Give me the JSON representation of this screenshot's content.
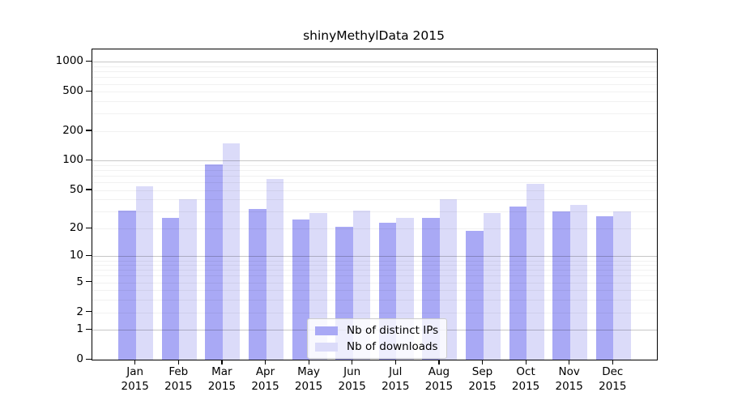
{
  "chart_data": {
    "type": "bar",
    "title": "shinyMethylData 2015",
    "categories": [
      "Jan",
      "Feb",
      "Mar",
      "Apr",
      "May",
      "Jun",
      "Jul",
      "Aug",
      "Sep",
      "Oct",
      "Nov",
      "Dec"
    ],
    "year_label": "2015",
    "series": [
      {
        "name": "Nb of distinct IPs",
        "color": "#a9a9f5",
        "values": [
          31,
          26,
          92,
          32,
          25,
          21,
          23,
          26,
          19,
          34,
          30,
          27
        ]
      },
      {
        "name": "Nb of downloads",
        "color": "#dbdbf9",
        "values": [
          55,
          40,
          150,
          65,
          29,
          31,
          26,
          40,
          29,
          58,
          35,
          30
        ]
      }
    ],
    "xlabel": "",
    "ylabel": "",
    "yscale": "log1p",
    "ylim": [
      0,
      1320
    ],
    "ytick_labels": [
      0,
      1,
      2,
      5,
      10,
      20,
      50,
      100,
      200,
      500,
      1000
    ],
    "major_gridlines": [
      1,
      10,
      100,
      1000
    ],
    "minor_gridline_decades": [
      1,
      10,
      100
    ],
    "grid": "horizontal, major dark + minor light, drawn over bars",
    "legend_position": "inside bottom-center",
    "colors": {
      "axis": "#000000",
      "background": "#ffffff",
      "legend_border": "#cccccc",
      "major_grid": "rgba(0,0,0,0.22)",
      "minor_grid": "rgba(0,0,0,0.055)"
    }
  }
}
